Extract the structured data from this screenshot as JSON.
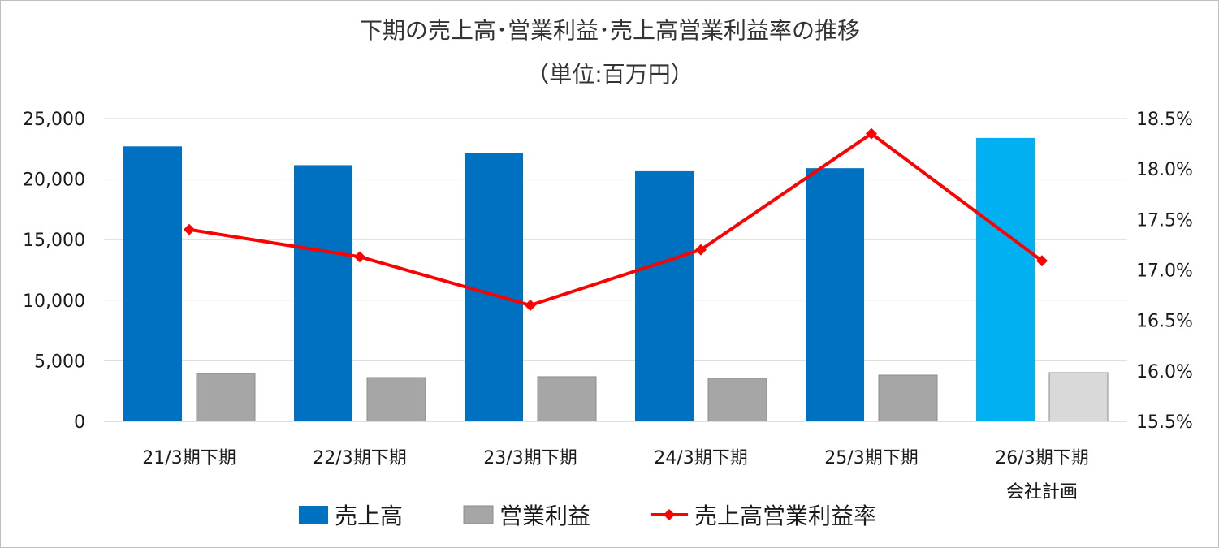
{
  "chart_data": {
    "type": "bar",
    "title": "下期の売上高･営業利益･売上高営業利益率の推移",
    "subtitle": "（単位:百万円）",
    "categories": [
      [
        "21/3期下期"
      ],
      [
        "22/3期下期"
      ],
      [
        "23/3期下期"
      ],
      [
        "24/3期下期"
      ],
      [
        "25/3期下期"
      ],
      [
        "26/3期下期",
        "会社計画"
      ]
    ],
    "series": [
      {
        "name": "売上高",
        "type": "bar",
        "axis": "left",
        "color": "#0070c0",
        "plan_color": "#00b0f0",
        "values": [
          22700,
          21150,
          22150,
          20650,
          20900,
          23400
        ]
      },
      {
        "name": "営業利益",
        "type": "bar",
        "axis": "left",
        "color": "#a6a6a6",
        "plan_color": "#d9d9d9",
        "values": [
          3950,
          3620,
          3690,
          3560,
          3820,
          4020
        ]
      },
      {
        "name": "売上高営業利益率",
        "type": "line",
        "axis": "right",
        "color": "#ff0000",
        "unit": "%",
        "values": [
          17.4,
          17.13,
          16.65,
          17.2,
          18.35,
          17.09
        ]
      }
    ],
    "y_left": {
      "ylim": [
        0,
        25000
      ],
      "ticks": [
        "0",
        "5,000",
        "10,000",
        "15,000",
        "20,000",
        "25,000"
      ]
    },
    "y_right": {
      "ylim": [
        15.5,
        18.5
      ],
      "ticks": [
        "15.5%",
        "16.0%",
        "16.5%",
        "17.0%",
        "17.5%",
        "18.0%",
        "18.5%"
      ]
    },
    "plan_category_index": 5,
    "grid": true,
    "legend_position": "bottom"
  }
}
